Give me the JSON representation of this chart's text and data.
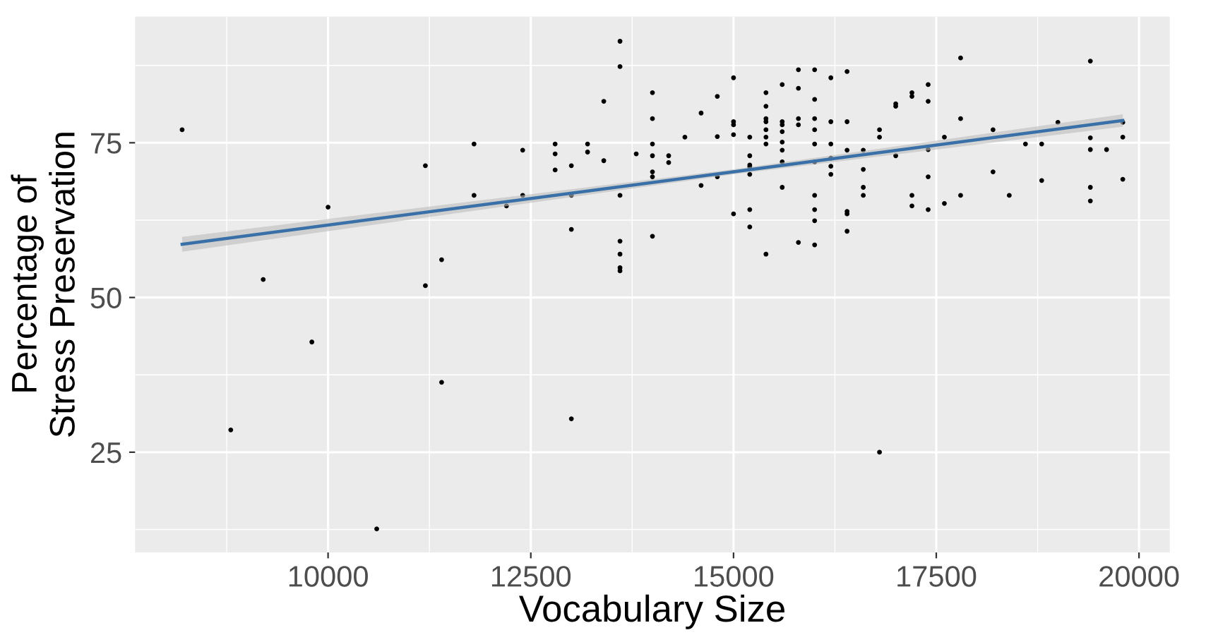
{
  "chart_data": {
    "type": "scatter",
    "xlabel": "Vocabulary Size",
    "ylabel": "Percentage of\nStress Preservation",
    "xlim": [
      7620,
      20380
    ],
    "ylim": [
      8.8,
      95.4
    ],
    "xticks": [
      {
        "value": 8750,
        "label": null
      },
      10000,
      {
        "value": 11250,
        "label": null
      },
      12500,
      {
        "value": 13750,
        "label": null
      },
      15000,
      {
        "value": 16250,
        "label": null
      },
      17500,
      {
        "value": 18750,
        "label": null
      },
      20000
    ],
    "yticks": [
      {
        "value": 12.5,
        "label": null
      },
      25,
      {
        "value": 37.5,
        "label": null
      },
      50,
      {
        "value": 62.5,
        "label": null
      },
      75,
      {
        "value": 87.5,
        "label": null
      }
    ],
    "grid": true,
    "series": [
      {
        "color": "#000000",
        "marker": "circle",
        "x": [
          8200,
          8800,
          9200,
          9800,
          10000,
          10600,
          11200,
          11200,
          11400,
          11400,
          11800,
          11800,
          12200,
          12400,
          12400,
          12800,
          12800,
          12800,
          13000,
          13000,
          13000,
          13000,
          13200,
          13200,
          13400,
          13400,
          13600,
          13600,
          13600,
          13600,
          13600,
          13600,
          13600,
          13800,
          14000,
          14000,
          14000,
          14000,
          14000,
          14000,
          14000,
          14200,
          14200,
          14400,
          14600,
          14600,
          14800,
          14800,
          14800,
          15000,
          15000,
          15000,
          15000,
          15000,
          15200,
          15200,
          15200,
          15200,
          15200,
          15200,
          15200,
          15400,
          15400,
          15400,
          15400,
          15400,
          15400,
          15400,
          15400,
          15600,
          15600,
          15600,
          15600,
          15600,
          15600,
          15600,
          15600,
          15800,
          15800,
          15800,
          15800,
          15800,
          16000,
          16000,
          16000,
          16000,
          16000,
          16000,
          16000,
          16000,
          16000,
          16000,
          16200,
          16200,
          16200,
          16200,
          16200,
          16200,
          16400,
          16400,
          16400,
          16400,
          16400,
          16400,
          16600,
          16600,
          16600,
          16600,
          16800,
          16800,
          16800,
          17000,
          17000,
          17000,
          17200,
          17200,
          17200,
          17200,
          17400,
          17400,
          17400,
          17400,
          17400,
          17600,
          17600,
          17800,
          17800,
          17800,
          18200,
          18200,
          18400,
          18600,
          18800,
          18800,
          19000,
          19400,
          19400,
          19400,
          19400,
          19400,
          19600,
          19800,
          19800,
          19800
        ],
        "values": [
          77.1,
          28.6,
          52.9,
          42.8,
          64.6,
          12.6,
          71.3,
          51.9,
          56.1,
          36.3,
          74.8,
          66.5,
          64.8,
          73.8,
          66.5,
          74.8,
          73.2,
          70.6,
          71.3,
          66.5,
          61.0,
          30.4,
          74.8,
          73.5,
          81.7,
          72.1,
          91.4,
          87.3,
          66.5,
          59.1,
          57.0,
          54.8,
          54.3,
          73.2,
          83.1,
          78.9,
          74.8,
          72.9,
          70.3,
          69.5,
          59.9,
          72.9,
          71.8,
          75.9,
          79.8,
          68.1,
          82.5,
          76.0,
          69.5,
          85.5,
          78.4,
          77.9,
          76.3,
          63.5,
          75.9,
          72.9,
          71.4,
          71.1,
          69.9,
          64.2,
          61.4,
          83.1,
          80.9,
          78.9,
          78.4,
          77.1,
          75.9,
          74.8,
          57.0,
          84.4,
          78.4,
          77.9,
          76.8,
          75.1,
          73.8,
          71.9,
          67.8,
          86.8,
          83.8,
          78.9,
          77.9,
          58.9,
          86.8,
          82.0,
          78.9,
          77.1,
          74.8,
          71.9,
          66.5,
          64.2,
          62.4,
          58.5,
          85.5,
          78.4,
          74.8,
          72.5,
          71.2,
          69.9,
          86.5,
          78.4,
          73.8,
          63.9,
          63.5,
          60.7,
          73.8,
          70.7,
          67.8,
          66.5,
          77.1,
          75.9,
          25.0,
          81.3,
          80.9,
          72.9,
          83.1,
          82.5,
          66.5,
          64.8,
          84.4,
          81.7,
          73.9,
          69.5,
          64.2,
          75.9,
          65.2,
          88.7,
          78.9,
          66.5,
          77.1,
          70.3,
          66.5,
          74.8,
          74.8,
          68.9,
          78.3,
          88.2,
          75.8,
          73.9,
          67.8,
          65.6,
          73.9,
          78.3,
          75.9,
          69.1
        ]
      },
      {
        "type": "line",
        "color": "#3a70a8",
        "x": [
          8200,
          15000,
          19800
        ],
        "values": [
          58.6,
          70.3,
          78.6
        ],
        "lower": [
          57.4,
          69.9,
          77.6
        ],
        "upper": [
          59.8,
          70.7,
          79.6
        ]
      }
    ]
  }
}
